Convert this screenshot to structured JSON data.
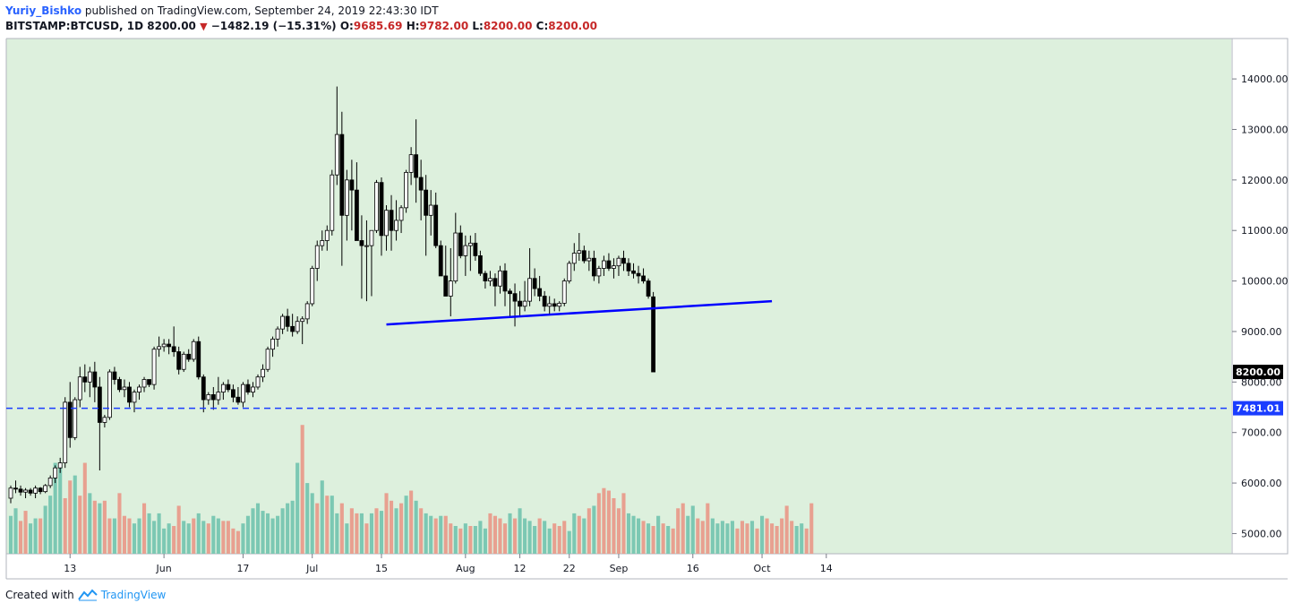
{
  "header": {
    "author": "Yuriy_Bishko",
    "published_text": "published on TradingView.com, September 24, 2019 22:43:30 IDT",
    "symbol": "BITSTAMP:BTCUSD, 1D",
    "last_price": "8200.00",
    "change": "−1482.19 (−15.31%)",
    "o_label": "O:",
    "o_value": "9685.69",
    "h_label": "H:",
    "h_value": "9782.00",
    "l_label": "L:",
    "l_value": "8200.00",
    "c_label": "C:",
    "c_value": "8200.00"
  },
  "footer": {
    "created_with": "Created with",
    "brand": "TradingView"
  },
  "colors": {
    "plot_bg": "#ddf0dd",
    "up_volume": "#7cc8b3",
    "down_volume": "#e8a090",
    "candle_down": "#000000",
    "candle_up": "#ffffff",
    "trendline": "#0000ff",
    "support_line": "#1a3cff"
  },
  "chart_data": {
    "type": "candlestick",
    "y_range": [
      4600,
      14800
    ],
    "y_ticks": [
      5000,
      6000,
      7000,
      8000,
      9000,
      10000,
      11000,
      12000,
      13000,
      14000
    ],
    "y_tick_labels": [
      "5000.00",
      "6000.00",
      "7000.00",
      "8000.00",
      "9000.00",
      "10000.00",
      "11000.00",
      "12000.00",
      "13000.00",
      "14000.00"
    ],
    "x_ticks": [
      {
        "label": "13",
        "bar": 12
      },
      {
        "label": "Jun",
        "bar": 31
      },
      {
        "label": "17",
        "bar": 47
      },
      {
        "label": "Jul",
        "bar": 61
      },
      {
        "label": "15",
        "bar": 75
      },
      {
        "label": "Aug",
        "bar": 92
      },
      {
        "label": "12",
        "bar": 103
      },
      {
        "label": "22",
        "bar": 113
      },
      {
        "label": "Sep",
        "bar": 123
      },
      {
        "label": "16",
        "bar": 138
      },
      {
        "label": "Oct",
        "bar": 152
      },
      {
        "label": "14",
        "bar": 165
      }
    ],
    "price_label": "8200.00",
    "support_level": 7481.01,
    "support_label": "7481.01",
    "trendline": {
      "from_bar": 76,
      "from_price": 9140,
      "to_bar": 154,
      "to_price": 9600
    },
    "candles": [
      [
        5700,
        5950,
        5600,
        5900
      ],
      [
        5900,
        6050,
        5800,
        5880
      ],
      [
        5880,
        5950,
        5750,
        5820
      ],
      [
        5820,
        5900,
        5700,
        5860
      ],
      [
        5860,
        5900,
        5750,
        5800
      ],
      [
        5800,
        5950,
        5700,
        5900
      ],
      [
        5900,
        5920,
        5780,
        5830
      ],
      [
        5830,
        5980,
        5800,
        5950
      ],
      [
        5950,
        6150,
        5900,
        6100
      ],
      [
        6100,
        6350,
        6000,
        6300
      ],
      [
        6300,
        6500,
        6200,
        6400
      ],
      [
        6400,
        7700,
        6300,
        7600
      ],
      [
        7600,
        8000,
        6700,
        6900
      ],
      [
        6900,
        7700,
        6850,
        7650
      ],
      [
        7650,
        8300,
        7500,
        8100
      ],
      [
        8100,
        8350,
        7800,
        8000
      ],
      [
        8000,
        8300,
        7700,
        8200
      ],
      [
        8200,
        8400,
        7600,
        7900
      ],
      [
        7900,
        8100,
        6250,
        7200
      ],
      [
        7200,
        7350,
        7100,
        7300
      ],
      [
        7300,
        8250,
        7250,
        8200
      ],
      [
        8200,
        8300,
        7950,
        8050
      ],
      [
        8050,
        8100,
        7800,
        7850
      ],
      [
        7850,
        8050,
        7700,
        7900
      ],
      [
        7900,
        8000,
        7500,
        7600
      ],
      [
        7600,
        7850,
        7400,
        7800
      ],
      [
        7800,
        7950,
        7650,
        7900
      ],
      [
        7900,
        8100,
        7800,
        8050
      ],
      [
        8050,
        8050,
        7900,
        7950
      ],
      [
        7950,
        8700,
        7850,
        8650
      ],
      [
        8650,
        8900,
        8500,
        8700
      ],
      [
        8700,
        8850,
        8600,
        8750
      ],
      [
        8750,
        8850,
        8550,
        8700
      ],
      [
        8700,
        9100,
        8500,
        8600
      ],
      [
        8600,
        8700,
        8150,
        8250
      ],
      [
        8250,
        8600,
        8200,
        8550
      ],
      [
        8550,
        8650,
        8400,
        8450
      ],
      [
        8450,
        8850,
        8400,
        8800
      ],
      [
        8800,
        8900,
        8050,
        8100
      ],
      [
        8100,
        8150,
        7400,
        7650
      ],
      [
        7650,
        7800,
        7550,
        7750
      ],
      [
        7750,
        7900,
        7450,
        7650
      ],
      [
        7650,
        8100,
        7550,
        7800
      ],
      [
        7800,
        8000,
        7650,
        7950
      ],
      [
        7950,
        8050,
        7800,
        7850
      ],
      [
        7850,
        7950,
        7600,
        7700
      ],
      [
        7700,
        7900,
        7550,
        7600
      ],
      [
        7600,
        8000,
        7500,
        7950
      ],
      [
        7950,
        8050,
        7750,
        7800
      ],
      [
        7800,
        8000,
        7700,
        7900
      ],
      [
        7900,
        8150,
        7850,
        8100
      ],
      [
        8100,
        8350,
        8000,
        8250
      ],
      [
        8250,
        8700,
        8200,
        8650
      ],
      [
        8650,
        8900,
        8500,
        8850
      ],
      [
        8850,
        9100,
        8700,
        9050
      ],
      [
        9050,
        9350,
        8950,
        9300
      ],
      [
        9300,
        9450,
        9000,
        9100
      ],
      [
        9100,
        9350,
        8900,
        9000
      ],
      [
        9000,
        9300,
        8950,
        9200
      ],
      [
        9200,
        9300,
        8750,
        9250
      ],
      [
        9250,
        9600,
        9150,
        9550
      ],
      [
        9550,
        10300,
        9500,
        10250
      ],
      [
        10250,
        10800,
        10000,
        10700
      ],
      [
        10700,
        11000,
        10600,
        10800
      ],
      [
        10800,
        11100,
        10600,
        11000
      ],
      [
        11000,
        12200,
        10900,
        12100
      ],
      [
        12100,
        13850,
        11900,
        12900
      ],
      [
        12900,
        13350,
        10300,
        11300
      ],
      [
        11300,
        12200,
        10800,
        12000
      ],
      [
        12000,
        12400,
        11000,
        11800
      ],
      [
        11800,
        12350,
        10900,
        10800
      ],
      [
        10800,
        11300,
        9650,
        10700
      ],
      [
        10700,
        11200,
        9600,
        10700
      ],
      [
        10700,
        11000,
        9700,
        11000
      ],
      [
        11000,
        12000,
        10950,
        11950
      ],
      [
        11950,
        12050,
        10500,
        10900
      ],
      [
        10900,
        11500,
        10600,
        11400
      ],
      [
        11400,
        11700,
        10600,
        11000
      ],
      [
        11000,
        11600,
        10800,
        11200
      ],
      [
        11200,
        11500,
        10950,
        11450
      ],
      [
        11450,
        12200,
        11350,
        12150
      ],
      [
        12150,
        12650,
        11900,
        12500
      ],
      [
        12500,
        13200,
        11550,
        12050
      ],
      [
        12050,
        12400,
        11200,
        11800
      ],
      [
        11800,
        12100,
        10500,
        11300
      ],
      [
        11300,
        11800,
        10900,
        11500
      ],
      [
        11500,
        11750,
        10650,
        10700
      ],
      [
        10700,
        10800,
        10150,
        10100
      ],
      [
        10100,
        10700,
        9700,
        9700
      ],
      [
        9700,
        10650,
        9300,
        10000
      ],
      [
        10000,
        11350,
        9950,
        10950
      ],
      [
        10950,
        11100,
        10450,
        10500
      ],
      [
        10500,
        10900,
        10100,
        10700
      ],
      [
        10700,
        10900,
        10200,
        10750
      ],
      [
        10750,
        10950,
        10400,
        10500
      ],
      [
        10500,
        10600,
        10100,
        10150
      ],
      [
        10150,
        10200,
        9850,
        10000
      ],
      [
        10000,
        10200,
        9900,
        10050
      ],
      [
        10050,
        10150,
        9500,
        9900
      ],
      [
        9900,
        10300,
        9750,
        10200
      ],
      [
        10200,
        10350,
        9500,
        9800
      ],
      [
        9800,
        9850,
        9300,
        9750
      ],
      [
        9750,
        9950,
        9100,
        9600
      ],
      [
        9600,
        9800,
        9300,
        9500
      ],
      [
        9500,
        10000,
        9400,
        9600
      ]
    ],
    "volumes": [
      [
        5350,
        1
      ],
      [
        5500,
        1
      ],
      [
        5250,
        0
      ],
      [
        5450,
        0
      ],
      [
        5200,
        1
      ],
      [
        5300,
        1
      ],
      [
        5300,
        0
      ],
      [
        5550,
        1
      ],
      [
        5750,
        1
      ],
      [
        6400,
        1
      ],
      [
        6400,
        1
      ],
      [
        5700,
        0
      ],
      [
        6050,
        0
      ],
      [
        6150,
        1
      ],
      [
        5750,
        0
      ],
      [
        6400,
        0
      ],
      [
        5800,
        1
      ],
      [
        5650,
        0
      ],
      [
        5600,
        1
      ],
      [
        5650,
        0
      ],
      [
        5300,
        0
      ],
      [
        5300,
        1
      ],
      [
        5800,
        0
      ],
      [
        5350,
        0
      ],
      [
        5300,
        0
      ],
      [
        5200,
        1
      ],
      [
        5300,
        1
      ],
      [
        5600,
        0
      ],
      [
        5400,
        1
      ],
      [
        5250,
        1
      ],
      [
        5400,
        1
      ],
      [
        5100,
        1
      ],
      [
        5200,
        1
      ],
      [
        5150,
        0
      ],
      [
        5550,
        0
      ],
      [
        5250,
        1
      ],
      [
        5200,
        1
      ],
      [
        5300,
        0
      ],
      [
        5400,
        1
      ],
      [
        5250,
        1
      ],
      [
        5200,
        0
      ],
      [
        5350,
        1
      ],
      [
        5300,
        1
      ],
      [
        5250,
        0
      ],
      [
        5250,
        0
      ],
      [
        5100,
        0
      ],
      [
        5050,
        0
      ],
      [
        5200,
        1
      ],
      [
        5350,
        1
      ],
      [
        5500,
        1
      ],
      [
        5600,
        1
      ],
      [
        5450,
        1
      ],
      [
        5400,
        1
      ],
      [
        5300,
        1
      ],
      [
        5350,
        1
      ],
      [
        5500,
        1
      ],
      [
        5600,
        1
      ],
      [
        5650,
        1
      ],
      [
        6400,
        1
      ],
      [
        7150,
        0
      ],
      [
        6000,
        1
      ],
      [
        5800,
        1
      ],
      [
        5600,
        0
      ],
      [
        6050,
        1
      ],
      [
        5750,
        0
      ],
      [
        5750,
        1
      ],
      [
        5400,
        1
      ],
      [
        5600,
        0
      ],
      [
        5200,
        1
      ],
      [
        5500,
        0
      ],
      [
        5400,
        0
      ],
      [
        5400,
        1
      ],
      [
        5200,
        0
      ],
      [
        5400,
        1
      ],
      [
        5500,
        0
      ],
      [
        5450,
        1
      ],
      [
        5800,
        0
      ],
      [
        5650,
        0
      ],
      [
        5500,
        1
      ],
      [
        5600,
        0
      ],
      [
        5750,
        1
      ],
      [
        5850,
        0
      ],
      [
        5650,
        1
      ],
      [
        5500,
        0
      ],
      [
        5400,
        1
      ],
      [
        5350,
        1
      ],
      [
        5300,
        0
      ],
      [
        5350,
        1
      ],
      [
        5350,
        0
      ],
      [
        5200,
        0
      ],
      [
        5150,
        1
      ],
      [
        5100,
        0
      ],
      [
        5200,
        1
      ],
      [
        5150,
        0
      ],
      [
        5150,
        1
      ],
      [
        5250,
        1
      ],
      [
        5100,
        1
      ],
      [
        5400,
        0
      ],
      [
        5350,
        0
      ],
      [
        5300,
        0
      ],
      [
        5200,
        0
      ],
      [
        5400,
        1
      ],
      [
        5300,
        0
      ],
      [
        5500,
        1
      ],
      [
        5300,
        1
      ],
      [
        5250,
        1
      ],
      [
        5150,
        1
      ],
      [
        5300,
        0
      ],
      [
        5250,
        1
      ],
      [
        5100,
        1
      ],
      [
        5200,
        0
      ],
      [
        5150,
        0
      ],
      [
        5250,
        0
      ],
      [
        5050,
        1
      ],
      [
        5400,
        1
      ],
      [
        5350,
        0
      ],
      [
        5300,
        1
      ],
      [
        5500,
        0
      ],
      [
        5550,
        1
      ],
      [
        5800,
        0
      ],
      [
        5900,
        0
      ],
      [
        5850,
        0
      ],
      [
        5700,
        0
      ],
      [
        5500,
        0
      ],
      [
        5800,
        0
      ],
      [
        5400,
        1
      ],
      [
        5350,
        1
      ],
      [
        5300,
        1
      ],
      [
        5250,
        0
      ],
      [
        5200,
        1
      ],
      [
        5150,
        0
      ],
      [
        5350,
        1
      ],
      [
        5200,
        0
      ],
      [
        5150,
        1
      ],
      [
        5100,
        0
      ],
      [
        5500,
        0
      ],
      [
        5600,
        0
      ],
      [
        5350,
        1
      ],
      [
        5550,
        1
      ],
      [
        5300,
        0
      ],
      [
        5250,
        0
      ],
      [
        5600,
        0
      ],
      [
        5300,
        1
      ],
      [
        5200,
        1
      ],
      [
        5250,
        1
      ],
      [
        5200,
        1
      ],
      [
        5250,
        1
      ],
      [
        5100,
        0
      ],
      [
        5250,
        0
      ],
      [
        5200,
        0
      ],
      [
        5250,
        1
      ],
      [
        5100,
        0
      ],
      [
        5350,
        1
      ],
      [
        5300,
        0
      ],
      [
        5200,
        0
      ],
      [
        5150,
        0
      ],
      [
        5300,
        0
      ],
      [
        5550,
        0
      ],
      [
        5250,
        0
      ],
      [
        5150,
        1
      ],
      [
        5200,
        1
      ],
      [
        5100,
        0
      ],
      [
        5600,
        0
      ]
    ],
    "trailing_candles": [
      [
        9600,
        10650,
        9500,
        10050
      ],
      [
        10050,
        10250,
        9700,
        9850
      ],
      [
        9850,
        10100,
        9600,
        9700
      ],
      [
        9700,
        9800,
        9400,
        9500
      ],
      [
        9500,
        9700,
        9350,
        9550
      ],
      [
        9550,
        9650,
        9400,
        9500
      ],
      [
        9500,
        9600,
        9400,
        9560
      ],
      [
        9560,
        10050,
        9500,
        10000
      ],
      [
        10000,
        10400,
        9950,
        10350
      ],
      [
        10350,
        10750,
        10200,
        10550
      ],
      [
        10550,
        10950,
        10400,
        10600
      ],
      [
        10600,
        10700,
        10350,
        10400
      ],
      [
        10400,
        10600,
        10200,
        10450
      ],
      [
        10450,
        10600,
        10000,
        10100
      ],
      [
        10100,
        10300,
        9950,
        10250
      ],
      [
        10250,
        10500,
        10100,
        10400
      ],
      [
        10400,
        10550,
        10200,
        10250
      ],
      [
        10250,
        10450,
        10050,
        10300
      ],
      [
        10300,
        10500,
        10100,
        10450
      ],
      [
        10450,
        10600,
        10200,
        10350
      ],
      [
        10350,
        10450,
        10100,
        10200
      ],
      [
        10200,
        10350,
        10050,
        10150
      ],
      [
        10150,
        10300,
        9950,
        10100
      ],
      [
        10100,
        10250,
        9950,
        10000
      ],
      [
        10000,
        10050,
        9650,
        9700
      ],
      [
        9686,
        9782,
        8200,
        8200
      ]
    ]
  }
}
